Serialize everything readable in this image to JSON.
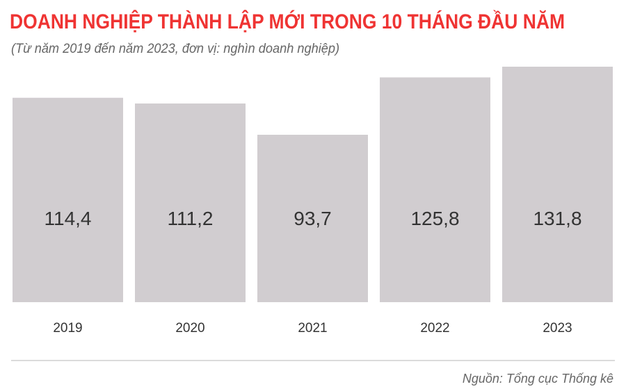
{
  "chart_data": {
    "type": "bar",
    "title": "DOANH NGHIỆP THÀNH LẬP MỚI TRONG 10 THÁNG ĐẦU NĂM",
    "subtitle": "(Từ năm 2019 đến năm 2023, đơn vị: nghìn doanh nghiệp)",
    "categories": [
      "2019",
      "2020",
      "2021",
      "2022",
      "2023"
    ],
    "values": [
      114.4,
      111.2,
      93.7,
      125.8,
      131.8
    ],
    "value_labels": [
      "114,4",
      "111,2",
      "93,7",
      "125,8",
      "131,8"
    ],
    "ylim": [
      0,
      131.8
    ],
    "grid": false,
    "bar_color": "#d1cdd0",
    "title_color": "#ef3433",
    "source": "Nguồn: Tổng cục Thống kê"
  }
}
